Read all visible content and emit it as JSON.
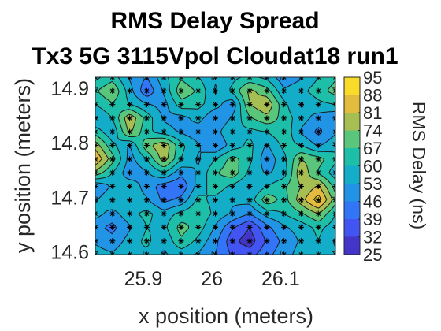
{
  "chart_data": {
    "type": "heatmap",
    "title": "RMS Delay Spread",
    "subtitle": "Tx3 5G 3115Vpol Cloudat18 run1",
    "xlabel": "x position (meters)",
    "ylabel": "y position (meters)",
    "colorbar_label": "RMS Delay (ns)",
    "xlim": [
      25.83,
      26.18
    ],
    "ylim": [
      14.595,
      14.92
    ],
    "xticks": [
      25.9,
      26.0,
      26.1
    ],
    "xtick_labels": [
      "25.9",
      "26",
      "26.1"
    ],
    "yticks": [
      14.6,
      14.7,
      14.8,
      14.9
    ],
    "ytick_labels": [
      "14.6",
      "14.7",
      "14.8",
      "14.9"
    ],
    "clim": [
      25,
      95
    ],
    "colorbar_ticks": [
      "95",
      "88",
      "81",
      "74",
      "67",
      "60",
      "53",
      "46",
      "39",
      "32",
      "25"
    ],
    "colormap": "parula",
    "contour_levels": [
      32,
      39,
      46,
      53,
      60,
      67,
      74,
      81,
      88
    ],
    "grid": false,
    "x": [
      25.83,
      25.855,
      25.88,
      25.905,
      25.93,
      25.955,
      25.98,
      26.005,
      26.03,
      26.055,
      26.08,
      26.105,
      26.13,
      26.155,
      26.18
    ],
    "y": [
      14.92,
      14.895,
      14.87,
      14.845,
      14.82,
      14.795,
      14.77,
      14.745,
      14.72,
      14.695,
      14.67,
      14.645,
      14.62,
      14.595
    ],
    "z": [
      [
        58,
        64,
        52,
        46,
        58,
        66,
        60,
        54,
        58,
        62,
        58,
        48,
        52,
        60,
        66
      ],
      [
        66,
        74,
        56,
        40,
        54,
        72,
        66,
        52,
        62,
        76,
        70,
        54,
        58,
        64,
        70
      ],
      [
        60,
        66,
        60,
        54,
        50,
        64,
        62,
        56,
        48,
        74,
        80,
        62,
        52,
        58,
        60
      ],
      [
        52,
        60,
        80,
        64,
        52,
        50,
        56,
        46,
        54,
        66,
        72,
        64,
        56,
        50,
        46
      ],
      [
        64,
        54,
        76,
        62,
        56,
        52,
        48,
        50,
        60,
        58,
        60,
        66,
        52,
        44,
        52
      ],
      [
        78,
        62,
        52,
        72,
        80,
        62,
        54,
        46,
        56,
        62,
        52,
        62,
        60,
        52,
        58
      ],
      [
        88,
        70,
        50,
        60,
        78,
        60,
        52,
        60,
        70,
        62,
        48,
        58,
        74,
        70,
        62
      ],
      [
        72,
        60,
        48,
        52,
        60,
        48,
        54,
        66,
        72,
        58,
        52,
        56,
        80,
        66,
        56
      ],
      [
        46,
        54,
        58,
        50,
        42,
        40,
        56,
        64,
        58,
        52,
        60,
        66,
        74,
        82,
        64
      ],
      [
        52,
        60,
        56,
        54,
        44,
        48,
        62,
        58,
        54,
        56,
        72,
        64,
        78,
        92,
        70
      ],
      [
        56,
        50,
        58,
        62,
        56,
        62,
        66,
        58,
        52,
        46,
        56,
        60,
        66,
        74,
        60
      ],
      [
        48,
        44,
        52,
        60,
        58,
        70,
        64,
        52,
        40,
        32,
        44,
        52,
        56,
        62,
        56
      ],
      [
        52,
        48,
        56,
        62,
        54,
        66,
        58,
        48,
        34,
        28,
        40,
        48,
        54,
        60,
        52
      ],
      [
        56,
        54,
        60,
        58,
        52,
        56,
        52,
        46,
        38,
        36,
        44,
        50,
        56,
        58,
        54
      ]
    ],
    "measurement_marker": "asterisk"
  }
}
